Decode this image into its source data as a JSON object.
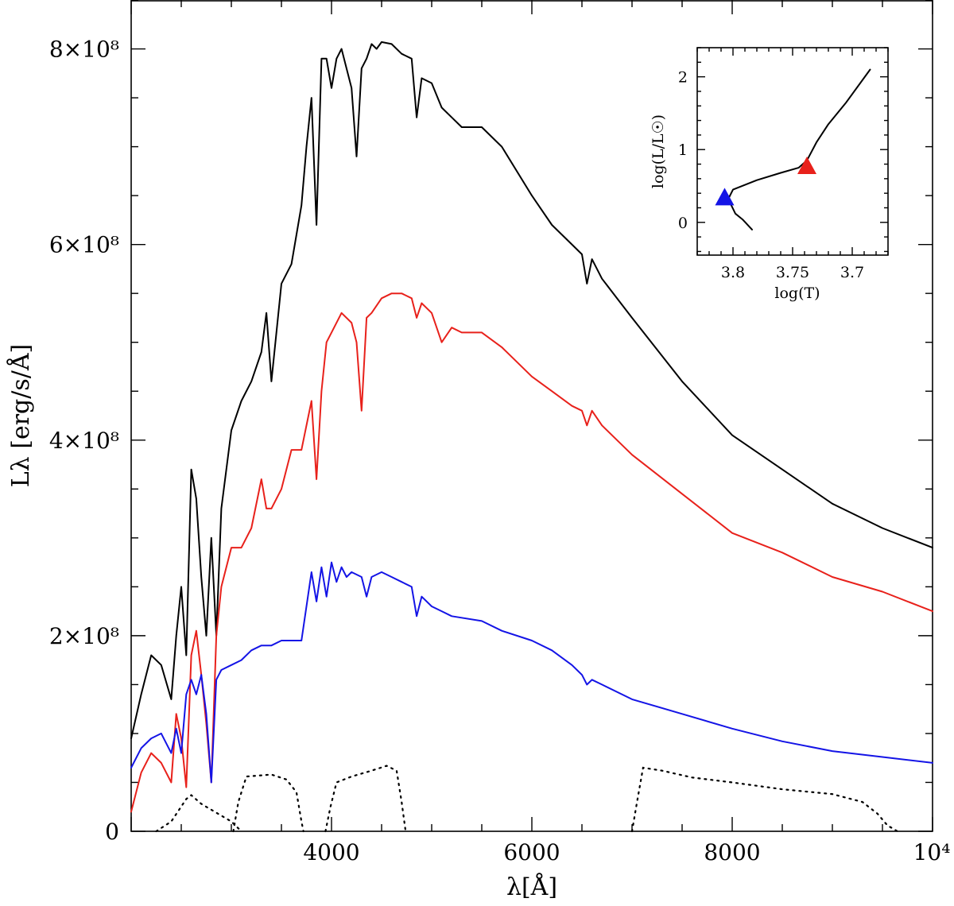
{
  "chart_data": [
    {
      "type": "line",
      "title": "",
      "xlabel": "λ[Å]",
      "ylabel": "Lλ [erg/s/Å]",
      "xlim": [
        2000,
        10000
      ],
      "ylim": [
        0,
        850000000.0
      ],
      "x_ticks": [
        {
          "value": 4000,
          "label": "4000"
        },
        {
          "value": 6000,
          "label": "6000"
        },
        {
          "value": 8000,
          "label": "8000"
        },
        {
          "value": 10000,
          "label": "10⁴"
        }
      ],
      "y_ticks": [
        {
          "value": 0,
          "label": "0"
        },
        {
          "value": 200000000.0,
          "label": "2×10⁸"
        },
        {
          "value": 400000000.0,
          "label": "4×10⁸"
        },
        {
          "value": 600000000.0,
          "label": "6×10⁸"
        },
        {
          "value": 800000000.0,
          "label": "8×10⁸"
        }
      ],
      "series": [
        {
          "name": "black spectrum",
          "color": "#000000",
          "style": "solid",
          "x": [
            2000,
            2100,
            2200,
            2300,
            2400,
            2450,
            2500,
            2550,
            2600,
            2650,
            2700,
            2750,
            2800,
            2850,
            2900,
            3000,
            3100,
            3200,
            3300,
            3350,
            3400,
            3500,
            3600,
            3700,
            3750,
            3800,
            3850,
            3900,
            3950,
            4000,
            4050,
            4100,
            4150,
            4200,
            4250,
            4300,
            4350,
            4400,
            4450,
            4500,
            4600,
            4700,
            4800,
            4850,
            4900,
            5000,
            5100,
            5200,
            5300,
            5500,
            5700,
            6000,
            6200,
            6400,
            6500,
            6550,
            6600,
            6700,
            7000,
            7500,
            8000,
            8500,
            9000,
            9500,
            10000
          ],
          "y": [
            95000000.0,
            140000000.0,
            180000000.0,
            170000000.0,
            135000000.0,
            200000000.0,
            250000000.0,
            180000000.0,
            370000000.0,
            340000000.0,
            260000000.0,
            200000000.0,
            300000000.0,
            200000000.0,
            330000000.0,
            410000000.0,
            440000000.0,
            460000000.0,
            490000000.0,
            530000000.0,
            460000000.0,
            560000000.0,
            580000000.0,
            640000000.0,
            700000000.0,
            750000000.0,
            620000000.0,
            790000000.0,
            790000000.0,
            760000000.0,
            790000000.0,
            800000000.0,
            780000000.0,
            760000000.0,
            690000000.0,
            780000000.0,
            790000000.0,
            805000000.0,
            800000000.0,
            807000000.0,
            805000000.0,
            795000000.0,
            790000000.0,
            730000000.0,
            770000000.0,
            765000000.0,
            740000000.0,
            730000000.0,
            720000000.0,
            720000000.0,
            700000000.0,
            650000000.0,
            620000000.0,
            600000000.0,
            590000000.0,
            560000000.0,
            585000000.0,
            565000000.0,
            525000000.0,
            460000000.0,
            405000000.0,
            370000000.0,
            335000000.0,
            310000000.0,
            290000000.0
          ]
        },
        {
          "name": "red spectrum",
          "color": "#e8211b",
          "style": "solid",
          "x": [
            2000,
            2100,
            2200,
            2300,
            2400,
            2450,
            2500,
            2550,
            2600,
            2650,
            2700,
            2750,
            2800,
            2850,
            2900,
            3000,
            3100,
            3200,
            3300,
            3350,
            3400,
            3500,
            3600,
            3700,
            3800,
            3850,
            3900,
            3950,
            4000,
            4100,
            4200,
            4250,
            4300,
            4350,
            4400,
            4500,
            4600,
            4700,
            4800,
            4850,
            4900,
            5000,
            5100,
            5200,
            5300,
            5500,
            5700,
            6000,
            6200,
            6400,
            6500,
            6550,
            6600,
            6700,
            7000,
            7500,
            8000,
            8500,
            9000,
            9500,
            10000
          ],
          "y": [
            20000000.0,
            60000000.0,
            80000000.0,
            70000000.0,
            50000000.0,
            120000000.0,
            95000000.0,
            45000000.0,
            180000000.0,
            205000000.0,
            160000000.0,
            110000000.0,
            50000000.0,
            200000000.0,
            250000000.0,
            290000000.0,
            290000000.0,
            310000000.0,
            360000000.0,
            330000000.0,
            330000000.0,
            350000000.0,
            390000000.0,
            390000000.0,
            440000000.0,
            360000000.0,
            450000000.0,
            500000000.0,
            510000000.0,
            530000000.0,
            520000000.0,
            500000000.0,
            430000000.0,
            525000000.0,
            530000000.0,
            545000000.0,
            550000000.0,
            550000000.0,
            545000000.0,
            525000000.0,
            540000000.0,
            530000000.0,
            500000000.0,
            515000000.0,
            510000000.0,
            510000000.0,
            495000000.0,
            465000000.0,
            450000000.0,
            435000000.0,
            430000000.0,
            415000000.0,
            430000000.0,
            415000000.0,
            385000000.0,
            345000000.0,
            305000000.0,
            285000000.0,
            260000000.0,
            245000000.0,
            225000000.0
          ]
        },
        {
          "name": "blue spectrum",
          "color": "#1414e6",
          "style": "solid",
          "x": [
            2000,
            2100,
            2200,
            2300,
            2400,
            2450,
            2500,
            2550,
            2600,
            2650,
            2700,
            2750,
            2800,
            2850,
            2900,
            3000,
            3100,
            3200,
            3300,
            3400,
            3500,
            3600,
            3700,
            3800,
            3850,
            3900,
            3950,
            4000,
            4050,
            4100,
            4150,
            4200,
            4300,
            4350,
            4400,
            4500,
            4600,
            4700,
            4800,
            4850,
            4900,
            5000,
            5100,
            5200,
            5500,
            5700,
            6000,
            6200,
            6400,
            6500,
            6550,
            6600,
            6700,
            7000,
            7500,
            8000,
            8500,
            9000,
            9500,
            10000
          ],
          "y": [
            65000000.0,
            85000000.0,
            95000000.0,
            100000000.0,
            80000000.0,
            105000000.0,
            80000000.0,
            140000000.0,
            155000000.0,
            140000000.0,
            160000000.0,
            120000000.0,
            50000000.0,
            155000000.0,
            165000000.0,
            170000000.0,
            175000000.0,
            185000000.0,
            190000000.0,
            190000000.0,
            195000000.0,
            195000000.0,
            195000000.0,
            265000000.0,
            235000000.0,
            270000000.0,
            240000000.0,
            275000000.0,
            255000000.0,
            270000000.0,
            260000000.0,
            265000000.0,
            260000000.0,
            240000000.0,
            260000000.0,
            265000000.0,
            260000000.0,
            255000000.0,
            250000000.0,
            220000000.0,
            240000000.0,
            230000000.0,
            225000000.0,
            220000000.0,
            215000000.0,
            205000000.0,
            195000000.0,
            185000000.0,
            170000000.0,
            160000000.0,
            150000000.0,
            155000000.0,
            150000000.0,
            135000000.0,
            120000000.0,
            105000000.0,
            92000000.0,
            82000000.0,
            76000000.0,
            70000000.0
          ]
        },
        {
          "name": "filter curve 1",
          "color": "#000000",
          "style": "dotted",
          "x": [
            2250,
            2400,
            2550,
            2600,
            2700,
            3000,
            3100
          ],
          "y": [
            0,
            10000000.0,
            33000000.0,
            37000000.0,
            28000000.0,
            10000000.0,
            0
          ]
        },
        {
          "name": "filter curve 2",
          "color": "#000000",
          "style": "dotted",
          "x": [
            3020,
            3070,
            3150,
            3400,
            3550,
            3650,
            3700,
            3720
          ],
          "y": [
            0,
            30000000.0,
            56000000.0,
            58000000.0,
            53000000.0,
            40000000.0,
            10000000.0,
            0
          ]
        },
        {
          "name": "filter curve 3",
          "color": "#000000",
          "style": "dotted",
          "x": [
            3940,
            3990,
            4050,
            4200,
            4400,
            4550,
            4650,
            4700,
            4740
          ],
          "y": [
            0,
            25000000.0,
            50000000.0,
            56000000.0,
            62000000.0,
            67000000.0,
            62000000.0,
            30000000.0,
            0
          ]
        },
        {
          "name": "filter curve 4",
          "color": "#000000",
          "style": "dotted",
          "x": [
            7000,
            7050,
            7110,
            7300,
            7600,
            8000,
            8500,
            9000,
            9300,
            9450,
            9550,
            9650
          ],
          "y": [
            0,
            30000000.0,
            65000000.0,
            62000000.0,
            55000000.0,
            50000000.0,
            43000000.0,
            38000000.0,
            30000000.0,
            18000000.0,
            6000000.0,
            0
          ]
        }
      ]
    },
    {
      "type": "line",
      "title": "",
      "xlabel": "log(T)",
      "ylabel": "log(L/L☉)",
      "xlim": [
        3.83,
        3.67
      ],
      "ylim": [
        -0.45,
        2.4
      ],
      "x_ticks": [
        {
          "value": 3.8,
          "label": "3.8"
        },
        {
          "value": 3.75,
          "label": "3.75"
        },
        {
          "value": 3.7,
          "label": "3.7"
        }
      ],
      "y_ticks": [
        {
          "value": 0,
          "label": "0"
        },
        {
          "value": 1,
          "label": "1"
        },
        {
          "value": 2,
          "label": "2"
        }
      ],
      "series": [
        {
          "name": "evolutionary track",
          "color": "#000000",
          "style": "solid",
          "x": [
            3.784,
            3.792,
            3.798,
            3.801,
            3.804,
            3.8,
            3.78,
            3.76,
            3.745,
            3.738,
            3.73,
            3.72,
            3.705,
            3.685
          ],
          "y": [
            -0.1,
            0.04,
            0.12,
            0.22,
            0.32,
            0.45,
            0.58,
            0.68,
            0.75,
            0.85,
            1.1,
            1.35,
            1.65,
            2.1
          ]
        }
      ],
      "markers": [
        {
          "name": "blue marker",
          "color": "#1414e6",
          "x": 3.807,
          "y": 0.33
        },
        {
          "name": "red marker",
          "color": "#e8211b",
          "x": 3.738,
          "y": 0.76
        }
      ]
    }
  ]
}
